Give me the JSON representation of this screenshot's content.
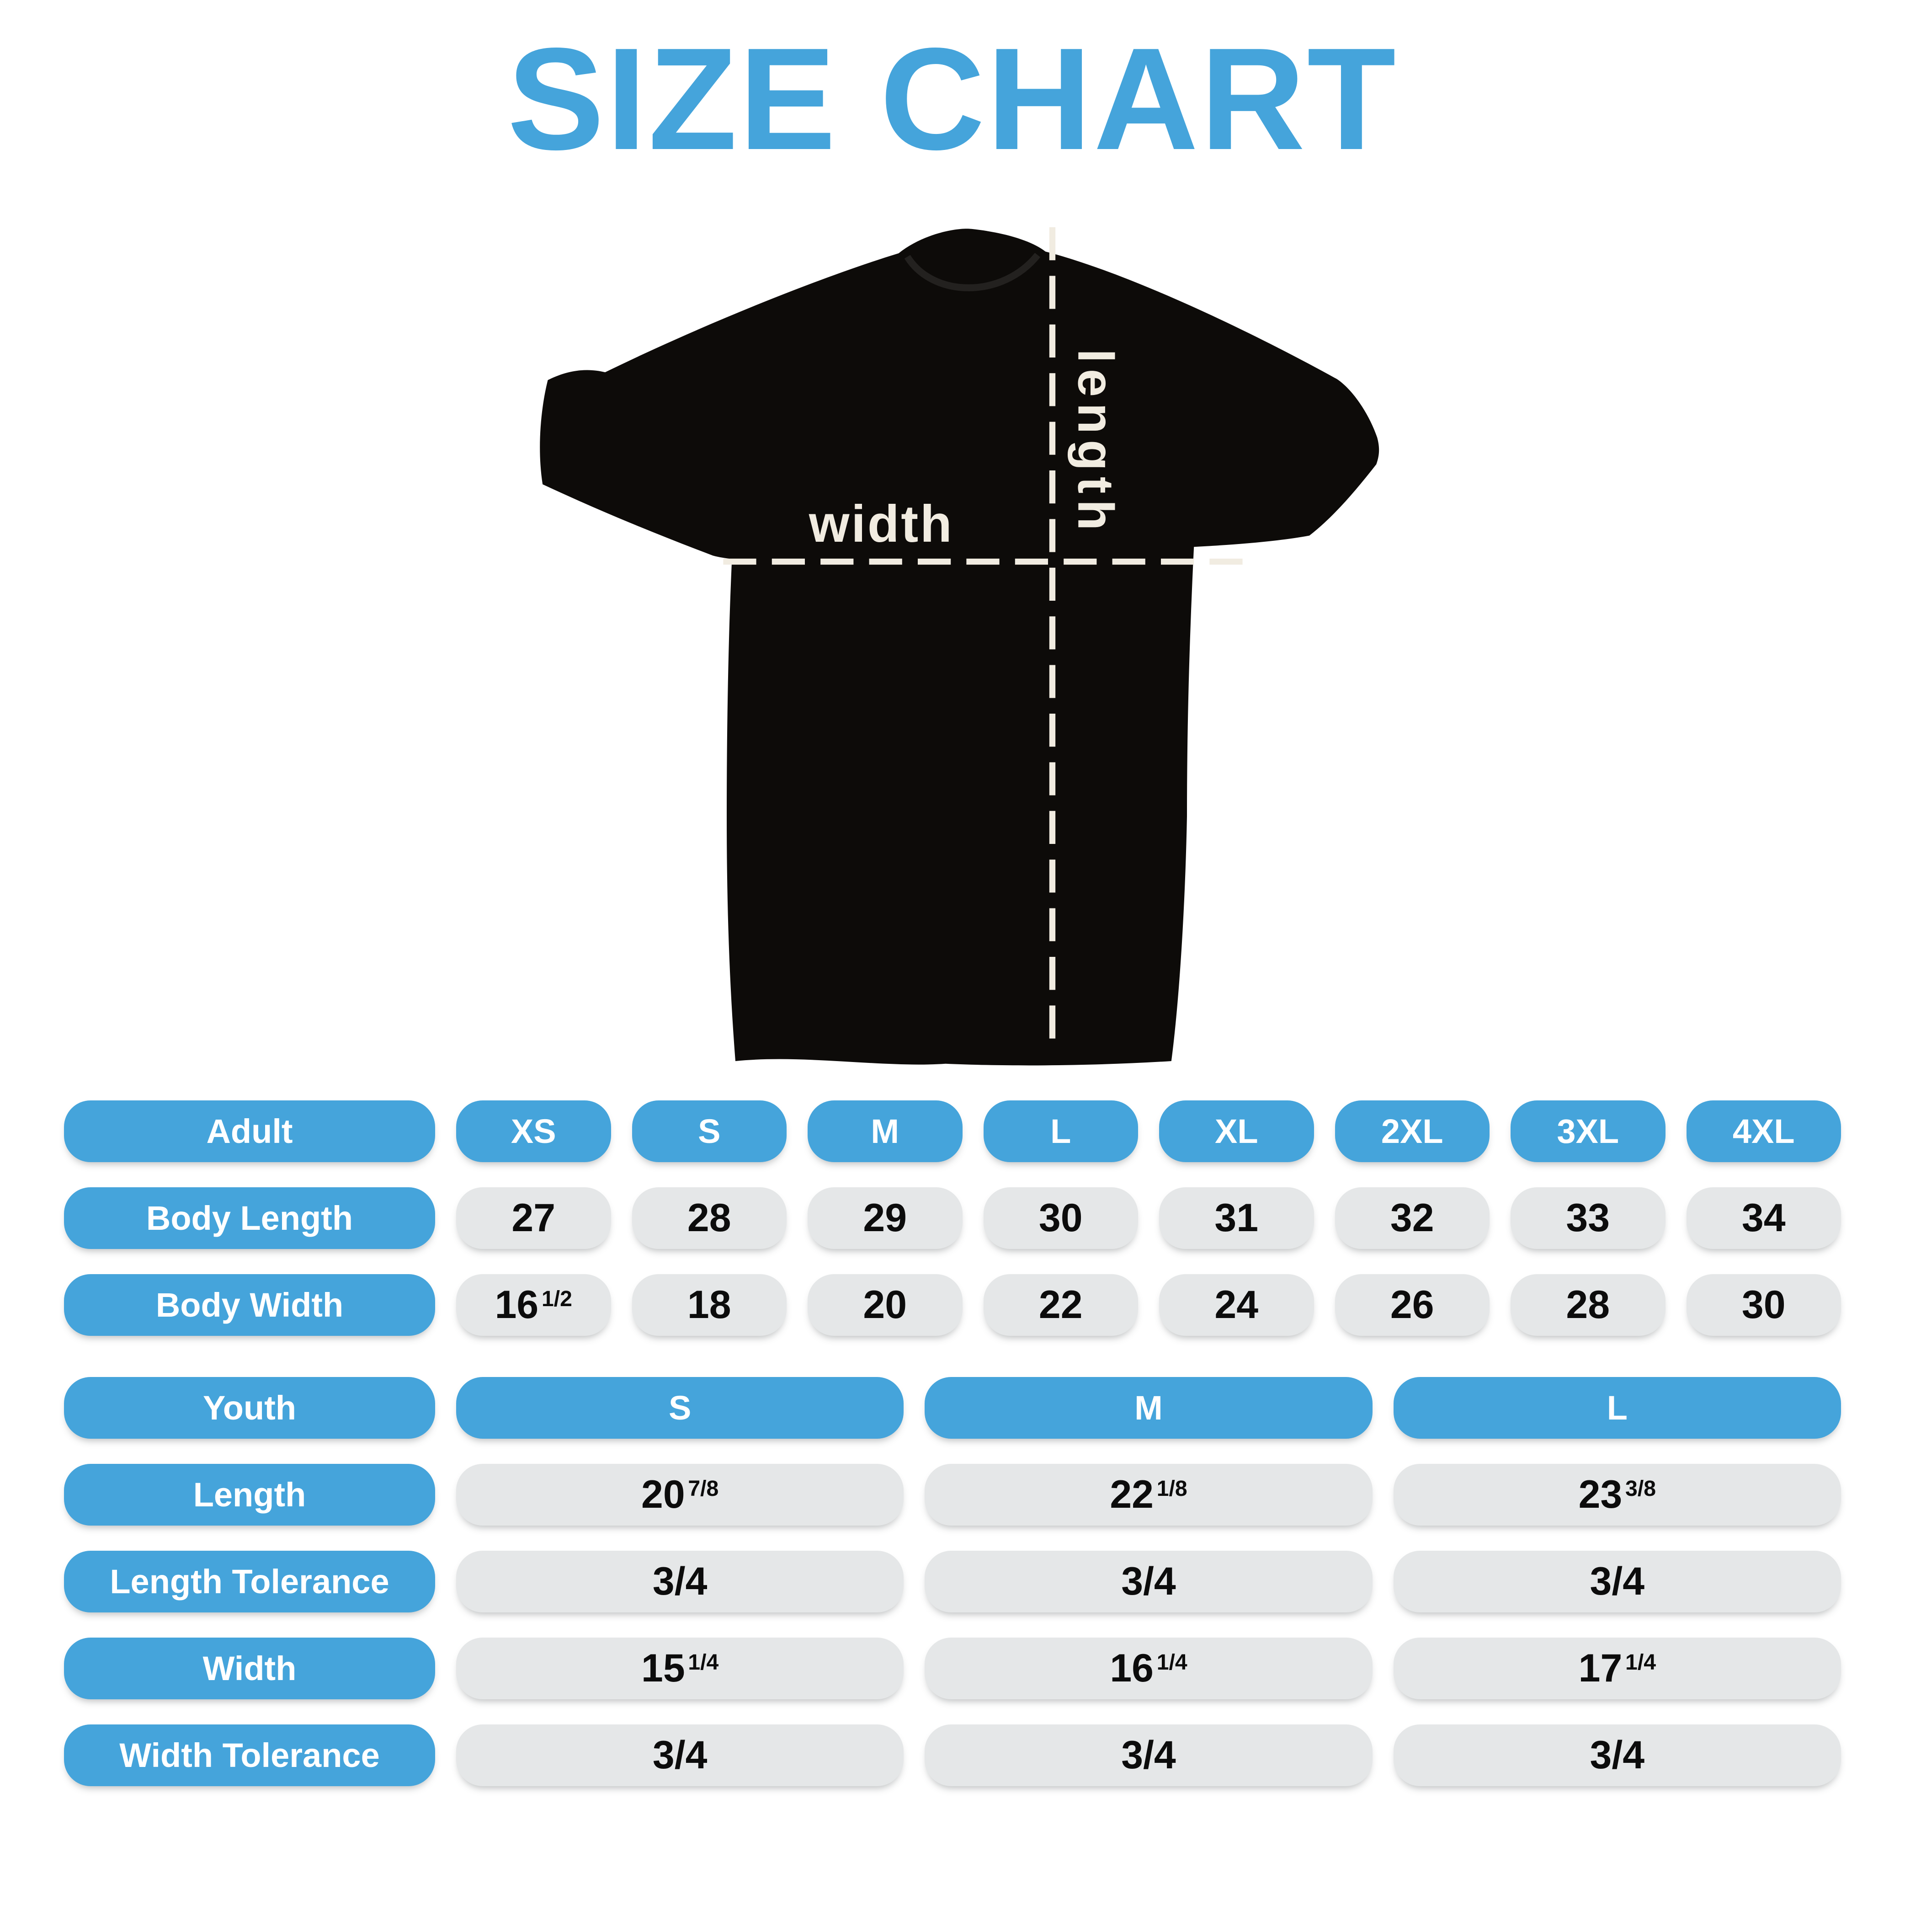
{
  "colors": {
    "accent": "#45a4db",
    "pill_gray": "#e5e7e8",
    "cream": "#f1ece1",
    "shirt_black": "#0d0b09"
  },
  "title": "SIZE CHART",
  "shirt_diagram": {
    "width_label": "width",
    "length_label": "length"
  },
  "adult_table": {
    "header": {
      "label": "Adult",
      "sizes": [
        "XS",
        "S",
        "M",
        "L",
        "XL",
        "2XL",
        "3XL",
        "4XL"
      ]
    },
    "rows": [
      {
        "label": "Body Length",
        "values": [
          "27",
          "28",
          "29",
          "30",
          "31",
          "32",
          "33",
          "34"
        ]
      },
      {
        "label": "Body Width",
        "values": [
          "16 1/2",
          "18",
          "20",
          "22",
          "24",
          "26",
          "28",
          "30"
        ]
      }
    ]
  },
  "youth_table": {
    "header": {
      "label": "Youth",
      "sizes": [
        "S",
        "M",
        "L"
      ]
    },
    "rows": [
      {
        "label": "Length",
        "values": [
          "20 7/8",
          "22 1/8",
          "23 3/8"
        ]
      },
      {
        "label": "Length Tolerance",
        "values": [
          "3/4",
          "3/4",
          "3/4"
        ]
      },
      {
        "label": "Width",
        "values": [
          "15 1/4",
          "16 1/4",
          "17 1/4"
        ]
      },
      {
        "label": "Width Tolerance",
        "values": [
          "3/4",
          "3/4",
          "3/4"
        ]
      }
    ]
  }
}
